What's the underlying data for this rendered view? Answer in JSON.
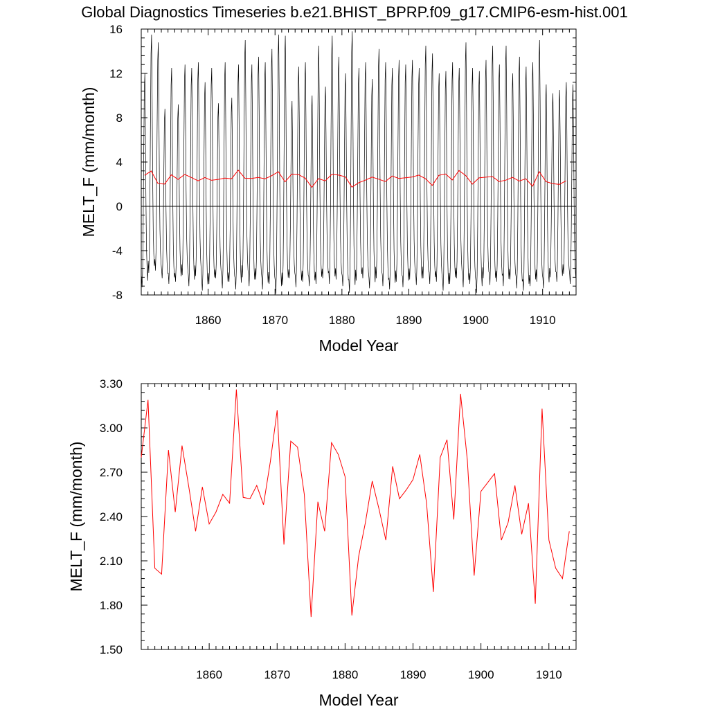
{
  "title": "Global Diagnostics Timeseries b.e21.BHIST_BPRP.f09_g17.CMIP6-esm-hist.001",
  "colors": {
    "monthly": "#000000",
    "annual": "#ff0000",
    "axes": "#000000",
    "background": "#ffffff"
  },
  "chart_data": [
    {
      "type": "line",
      "xlabel": "Model Year",
      "ylabel": "MELT_F (mm/month)",
      "xlim": [
        1850,
        1915
      ],
      "ylim": [
        -8,
        16
      ],
      "xticks": [
        1860,
        1870,
        1880,
        1890,
        1900,
        1910
      ],
      "xtick_labels": [
        "1860",
        "1870",
        "1880",
        "1890",
        "1900",
        "1910"
      ],
      "yticks": [
        -8,
        -4,
        0,
        4,
        8,
        12,
        16
      ],
      "ytick_labels": [
        "-8",
        "-4",
        "0",
        "4",
        "8",
        "12",
        "16"
      ],
      "zero_line": true,
      "grid": false,
      "series": [
        {
          "color": "#000000",
          "description": "monthly values oscillating between minima near -7 and maxima near 12-15.8 each year",
          "annual_max": [
            12.0,
            15.5,
            14.8,
            8.8,
            12.5,
            9.2,
            12.8,
            12.5,
            13.0,
            11.2,
            12.5,
            9.3,
            13.0,
            9.8,
            12.8,
            15.0,
            12.8,
            13.5,
            13.0,
            14.2,
            15.5,
            15.4,
            9.5,
            12.6,
            13.0,
            10.0,
            14.5,
            10.8,
            15.4,
            13.5,
            12.0,
            15.8,
            12.5,
            13.0,
            11.5,
            14.2,
            13.0,
            12.5,
            13.2,
            12.8,
            13.2,
            12.5,
            14.5,
            13.8,
            12.0,
            12.2,
            13.0,
            12.5,
            14.8,
            12.5,
            12.2,
            13.2,
            14.5,
            12.8,
            14.5,
            12.0,
            13.5,
            12.6,
            13.0,
            15.0,
            11.0,
            10.2,
            10.5,
            11.2,
            11.0
          ],
          "annual_min": [
            -7.3,
            -6.0,
            -5.8,
            -6.5,
            -7.0,
            -6.8,
            -6.2,
            -7.2,
            -6.3,
            -7.6,
            -7.0,
            -6.5,
            -7.4,
            -6.8,
            -7.5,
            -6.4,
            -7.2,
            -6.6,
            -7.5,
            -7.0,
            -7.9,
            -7.1,
            -6.5,
            -7.3,
            -6.8,
            -7.2,
            -7.0,
            -6.5,
            -7.0,
            -6.6,
            -7.2,
            -7.8,
            -6.7,
            -6.5,
            -7.4,
            -6.5,
            -7.2,
            -7.5,
            -6.8,
            -7.3,
            -6.6,
            -7.1,
            -6.5,
            -7.0,
            -6.8,
            -7.6,
            -7.0,
            -6.5,
            -7.3,
            -7.0,
            -7.8,
            -6.5,
            -7.1,
            -6.8,
            -7.2,
            -6.6,
            -7.4,
            -7.6,
            -7.2,
            -6.8,
            -7.4,
            -6.4,
            -6.8,
            -6.1,
            -7.0
          ]
        },
        {
          "color": "#ff0000",
          "description": "annual mean (same values as lower panel)",
          "same_as_panel": 2
        }
      ]
    },
    {
      "type": "line",
      "xlabel": "Model Year",
      "ylabel": "MELT_F (mm/month)",
      "xlim": [
        1850,
        1914
      ],
      "ylim": [
        1.5,
        3.3
      ],
      "xticks": [
        1860,
        1870,
        1880,
        1890,
        1900,
        1910
      ],
      "xtick_labels": [
        "1860",
        "1870",
        "1880",
        "1890",
        "1900",
        "1910"
      ],
      "yticks": [
        1.5,
        1.8,
        2.1,
        2.4,
        2.7,
        3.0,
        3.3
      ],
      "ytick_labels": [
        "1.50",
        "1.80",
        "2.10",
        "2.40",
        "2.70",
        "3.00",
        "3.30"
      ],
      "grid": false,
      "series": [
        {
          "color": "#ff0000",
          "x": [
            1850,
            1851,
            1852,
            1853,
            1854,
            1855,
            1856,
            1857,
            1858,
            1859,
            1860,
            1861,
            1862,
            1863,
            1864,
            1865,
            1866,
            1867,
            1868,
            1869,
            1870,
            1871,
            1872,
            1873,
            1874,
            1875,
            1876,
            1877,
            1878,
            1879,
            1880,
            1881,
            1882,
            1883,
            1884,
            1885,
            1886,
            1887,
            1888,
            1889,
            1890,
            1891,
            1892,
            1893,
            1894,
            1895,
            1896,
            1897,
            1898,
            1899,
            1900,
            1901,
            1902,
            1903,
            1904,
            1905,
            1906,
            1907,
            1908,
            1909,
            1910,
            1911,
            1912,
            1913
          ],
          "values": [
            2.8,
            3.19,
            2.05,
            2.01,
            2.85,
            2.43,
            2.88,
            2.6,
            2.3,
            2.6,
            2.35,
            2.43,
            2.55,
            2.49,
            3.26,
            2.53,
            2.52,
            2.61,
            2.48,
            2.77,
            3.12,
            2.21,
            2.91,
            2.87,
            2.55,
            1.72,
            2.5,
            2.3,
            2.9,
            2.82,
            2.67,
            1.73,
            2.13,
            2.36,
            2.64,
            2.45,
            2.24,
            2.74,
            2.52,
            2.58,
            2.65,
            2.82,
            2.49,
            1.89,
            2.8,
            2.92,
            2.38,
            3.23,
            2.78,
            2.0,
            2.57,
            2.63,
            2.69,
            2.24,
            2.36,
            2.61,
            2.28,
            2.49,
            1.81,
            3.13,
            2.24,
            2.05,
            1.98,
            2.3
          ]
        }
      ]
    }
  ]
}
